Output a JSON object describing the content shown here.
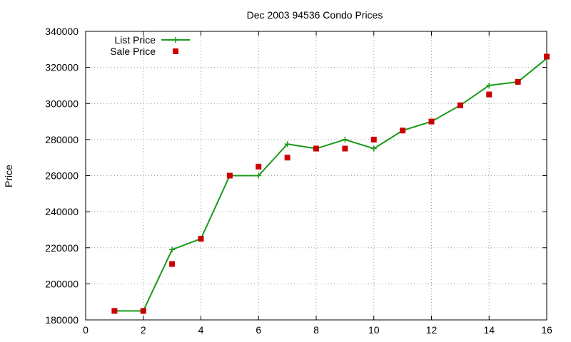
{
  "chart_data": {
    "type": "line",
    "title": "Dec 2003 94536 Condo Prices",
    "xlabel": "",
    "ylabel": "Price",
    "xlim": [
      0,
      16
    ],
    "ylim": [
      180000,
      340000
    ],
    "x_ticks": [
      0,
      2,
      4,
      6,
      8,
      10,
      12,
      14,
      16
    ],
    "y_ticks": [
      180000,
      200000,
      220000,
      240000,
      260000,
      280000,
      300000,
      320000,
      340000
    ],
    "grid": true,
    "legend_position": "top-left",
    "series": [
      {
        "name": "List Price",
        "style": "line-with-plus-markers",
        "color": "#1a9a1a",
        "x": [
          1,
          2,
          3,
          4,
          5,
          6,
          7,
          8,
          9,
          10,
          11,
          12,
          13,
          14,
          15,
          16
        ],
        "values": [
          185000,
          185000,
          219000,
          225000,
          260000,
          260000,
          277500,
          275000,
          280000,
          275000,
          285000,
          290000,
          299000,
          310000,
          312000,
          325000
        ]
      },
      {
        "name": "Sale Price",
        "style": "square-points",
        "color": "#cc0000",
        "x": [
          1,
          2,
          3,
          4,
          5,
          6,
          7,
          8,
          9,
          10,
          11,
          12,
          13,
          14,
          15,
          16
        ],
        "values": [
          185000,
          185000,
          211000,
          225000,
          260000,
          265000,
          270000,
          275000,
          275000,
          280000,
          285000,
          290000,
          299000,
          305000,
          312000,
          326000
        ]
      }
    ]
  }
}
